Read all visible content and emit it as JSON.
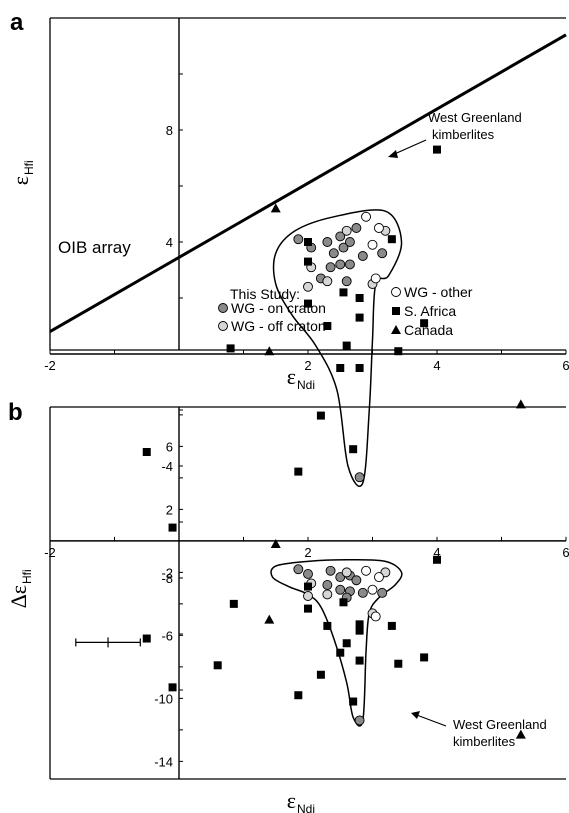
{
  "chart_data": [
    {
      "panel": "a",
      "type": "scatter",
      "xlim": [
        -2,
        6
      ],
      "ylim": [
        -12,
        12
      ],
      "xticks": [
        -2,
        2,
        4,
        6
      ],
      "yticks": [
        8,
        4,
        -4,
        -8
      ],
      "xlabel_main": "ε",
      "xlabel_sub": "Ndi",
      "ylabel_main": "ε",
      "ylabel_sub": "Hfi",
      "oib_line": {
        "label": "OIB array",
        "x": [
          -2,
          6
        ],
        "y": [
          0.8,
          11.4
        ]
      },
      "field": {
        "label": [
          "West Greenland",
          "kimberlites"
        ],
        "outline": [
          [
            1.5,
            3.6
          ],
          [
            1.8,
            4.4
          ],
          [
            2.4,
            4.9
          ],
          [
            3.2,
            5.1
          ],
          [
            3.45,
            4.0
          ],
          [
            3.25,
            2.8
          ],
          [
            3.05,
            2.5
          ],
          [
            3.0,
            0.5
          ],
          [
            2.95,
            -2.0
          ],
          [
            2.85,
            -4.6
          ],
          [
            2.62,
            -4.0
          ],
          [
            2.45,
            -1.3
          ],
          [
            2.12,
            0.3
          ],
          [
            1.75,
            1.4
          ],
          [
            1.5,
            2.5
          ]
        ]
      },
      "series": [
        {
          "name": "WG - on craton",
          "marker": "circle-dark",
          "points": [
            [
              1.85,
              4.1
            ],
            [
              2.05,
              3.8
            ],
            [
              2.3,
              4.0
            ],
            [
              2.4,
              3.6
            ],
            [
              2.5,
              4.2
            ],
            [
              2.55,
              3.8
            ],
            [
              2.65,
              4.0
            ],
            [
              2.75,
              4.5
            ],
            [
              2.35,
              3.1
            ],
            [
              2.5,
              3.2
            ],
            [
              2.65,
              3.2
            ],
            [
              2.85,
              3.5
            ],
            [
              3.15,
              3.6
            ],
            [
              2.2,
              2.7
            ],
            [
              2.8,
              -4.4
            ],
            [
              2.6,
              2.6
            ]
          ]
        },
        {
          "name": "WG - off craton",
          "marker": "circle-light",
          "points": [
            [
              2.05,
              3.1
            ],
            [
              2.0,
              2.4
            ],
            [
              2.3,
              2.6
            ],
            [
              2.6,
              4.4
            ],
            [
              3.0,
              2.5
            ],
            [
              3.2,
              4.4
            ]
          ]
        },
        {
          "name": "WG - other",
          "marker": "circle-open",
          "points": [
            [
              2.9,
              4.9
            ],
            [
              3.1,
              4.5
            ],
            [
              3.0,
              3.9
            ],
            [
              3.05,
              2.7
            ]
          ]
        },
        {
          "name": "S. Africa",
          "marker": "square",
          "points": [
            [
              4.0,
              7.3
            ],
            [
              -0.5,
              -3.5
            ],
            [
              -0.1,
              -6.2
            ],
            [
              0.8,
              0.2
            ],
            [
              1.85,
              -4.2
            ],
            [
              2.0,
              4.0
            ],
            [
              2.0,
              3.3
            ],
            [
              2.0,
              1.8
            ],
            [
              2.2,
              -2.2
            ],
            [
              2.3,
              1.0
            ],
            [
              2.5,
              -0.5
            ],
            [
              2.6,
              0.3
            ],
            [
              2.7,
              -3.4
            ],
            [
              2.8,
              2.0
            ],
            [
              2.8,
              1.3
            ],
            [
              2.8,
              -0.5
            ],
            [
              3.3,
              4.1
            ],
            [
              3.4,
              0.1
            ],
            [
              3.8,
              1.1
            ],
            [
              2.55,
              2.2
            ]
          ]
        },
        {
          "name": "Canada",
          "marker": "triangle",
          "points": [
            [
              1.5,
              5.2
            ],
            [
              1.4,
              0.1
            ],
            [
              5.3,
              -1.8
            ]
          ]
        }
      ],
      "legend": {
        "title": "This Study:"
      },
      "errorbar": {
        "x": -1.1,
        "y": -10.3,
        "xerr": 0.5
      }
    },
    {
      "panel": "b",
      "type": "scatter",
      "xlim": [
        -2,
        6
      ],
      "ylim": [
        -15,
        8.5
      ],
      "xticks": [
        -2,
        2,
        4,
        6
      ],
      "yticks": [
        6,
        2,
        -2,
        -6,
        -10,
        -14
      ],
      "xlabel_main": "ε",
      "xlabel_sub": "Ndi",
      "ylabel_main": "Δε",
      "ylabel_sub": "Hfi",
      "field": {
        "label": [
          "West Greenland",
          "kimberlites"
        ],
        "outline": [
          [
            1.45,
            -2.3
          ],
          [
            1.5,
            -1.6
          ],
          [
            2.0,
            -1.3
          ],
          [
            2.6,
            -1.2
          ],
          [
            3.2,
            -1.3
          ],
          [
            3.45,
            -2.0
          ],
          [
            3.35,
            -2.8
          ],
          [
            3.1,
            -3.6
          ],
          [
            2.95,
            -4.6
          ],
          [
            2.9,
            -7.0
          ],
          [
            2.85,
            -11.4
          ],
          [
            2.7,
            -11.2
          ],
          [
            2.6,
            -9.0
          ],
          [
            2.4,
            -6.2
          ],
          [
            2.2,
            -4.2
          ],
          [
            2.0,
            -3.4
          ],
          [
            1.7,
            -2.9
          ]
        ]
      },
      "series": [
        {
          "name": "WG - on craton",
          "marker": "circle-dark",
          "points": [
            [
              1.85,
              -1.8
            ],
            [
              2.0,
              -2.1
            ],
            [
              2.35,
              -1.9
            ],
            [
              2.5,
              -2.3
            ],
            [
              2.65,
              -2.2
            ],
            [
              2.3,
              -2.8
            ],
            [
              2.5,
              -3.1
            ],
            [
              2.65,
              -3.2
            ],
            [
              2.75,
              -2.5
            ],
            [
              2.85,
              -3.3
            ],
            [
              3.15,
              -3.3
            ],
            [
              2.6,
              -3.6
            ],
            [
              2.8,
              -11.4
            ]
          ]
        },
        {
          "name": "WG - off craton",
          "marker": "circle-light",
          "points": [
            [
              2.05,
              -2.7
            ],
            [
              2.0,
              -3.5
            ],
            [
              2.3,
              -3.4
            ],
            [
              2.6,
              -2.0
            ],
            [
              3.2,
              -2.0
            ],
            [
              3.0,
              -4.6
            ]
          ]
        },
        {
          "name": "WG - other",
          "marker": "circle-open",
          "points": [
            [
              2.9,
              -1.9
            ],
            [
              3.1,
              -2.3
            ],
            [
              3.0,
              -3.1
            ],
            [
              3.05,
              -4.8
            ]
          ]
        },
        {
          "name": "S. Africa",
          "marker": "square",
          "points": [
            [
              4.0,
              -1.2
            ],
            [
              -0.5,
              -6.2
            ],
            [
              -0.1,
              -9.3
            ],
            [
              0.6,
              -7.9
            ],
            [
              0.85,
              -4.0
            ],
            [
              1.85,
              -9.8
            ],
            [
              2.0,
              -2.9
            ],
            [
              2.0,
              -4.3
            ],
            [
              2.2,
              -8.5
            ],
            [
              2.3,
              -5.4
            ],
            [
              2.5,
              -7.1
            ],
            [
              2.6,
              -6.5
            ],
            [
              2.7,
              -10.2
            ],
            [
              2.8,
              -5.3
            ],
            [
              2.8,
              -5.7
            ],
            [
              2.8,
              -7.6
            ],
            [
              3.3,
              -5.4
            ],
            [
              3.4,
              -7.8
            ],
            [
              3.8,
              -7.4
            ],
            [
              2.55,
              -3.9
            ]
          ]
        },
        {
          "name": "Canada",
          "marker": "triangle",
          "points": [
            [
              1.5,
              -0.2
            ],
            [
              1.4,
              -5.0
            ],
            [
              5.3,
              -12.3
            ]
          ]
        }
      ]
    }
  ]
}
